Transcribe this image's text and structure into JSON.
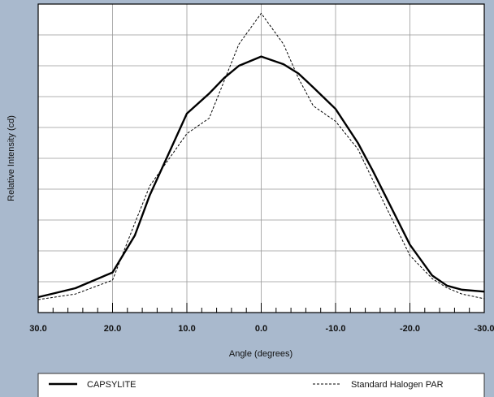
{
  "chart_data": {
    "type": "line",
    "xlabel": "Angle (degrees)",
    "ylabel": "Relative Intensity (cd)",
    "x": [
      30,
      25,
      20,
      17,
      15,
      10,
      7,
      5,
      3,
      0,
      -3,
      -5,
      -7,
      -10,
      -13,
      -15,
      -20,
      -23,
      -25,
      -27,
      -30
    ],
    "series": [
      {
        "name": "CAPSYLITE",
        "color": "#000000",
        "dash": false,
        "values": [
          0.5,
          0.79,
          1.3,
          2.5,
          3.8,
          6.45,
          7.1,
          7.6,
          8.0,
          8.3,
          8.05,
          7.75,
          7.3,
          6.6,
          5.5,
          4.6,
          2.2,
          1.2,
          0.87,
          0.74,
          0.68
        ]
      },
      {
        "name": "Standard Halogen PAR",
        "color": "#000000",
        "dash": true,
        "values": [
          0.42,
          0.6,
          1.05,
          2.9,
          4.1,
          5.8,
          6.3,
          7.5,
          8.7,
          9.7,
          8.7,
          7.6,
          6.7,
          6.2,
          5.3,
          4.3,
          1.85,
          1.1,
          0.8,
          0.6,
          0.45
        ]
      }
    ],
    "xlim": [
      30,
      -30
    ],
    "ylim": [
      0,
      10
    ],
    "xticks": [
      {
        "value": 30,
        "label": "30.0"
      },
      {
        "value": 20,
        "label": "20.0"
      },
      {
        "value": 10,
        "label": "10.0"
      },
      {
        "value": 0,
        "label": "0.0"
      },
      {
        "value": -10,
        "label": "-10.0"
      },
      {
        "value": -20,
        "label": "-20.0"
      },
      {
        "value": -30,
        "label": "-30.0"
      }
    ],
    "xminorticks": [
      28,
      26,
      24,
      22,
      18,
      16,
      14,
      12,
      8,
      6,
      4,
      2,
      -2,
      -4,
      -6,
      -8,
      -12,
      -14,
      -16,
      -18,
      -22,
      -24,
      -26,
      -28
    ],
    "yticks": [
      0,
      1,
      2,
      3,
      4,
      5,
      6,
      7,
      8,
      9,
      10
    ],
    "show_ytick_labels": false,
    "grid": true
  }
}
